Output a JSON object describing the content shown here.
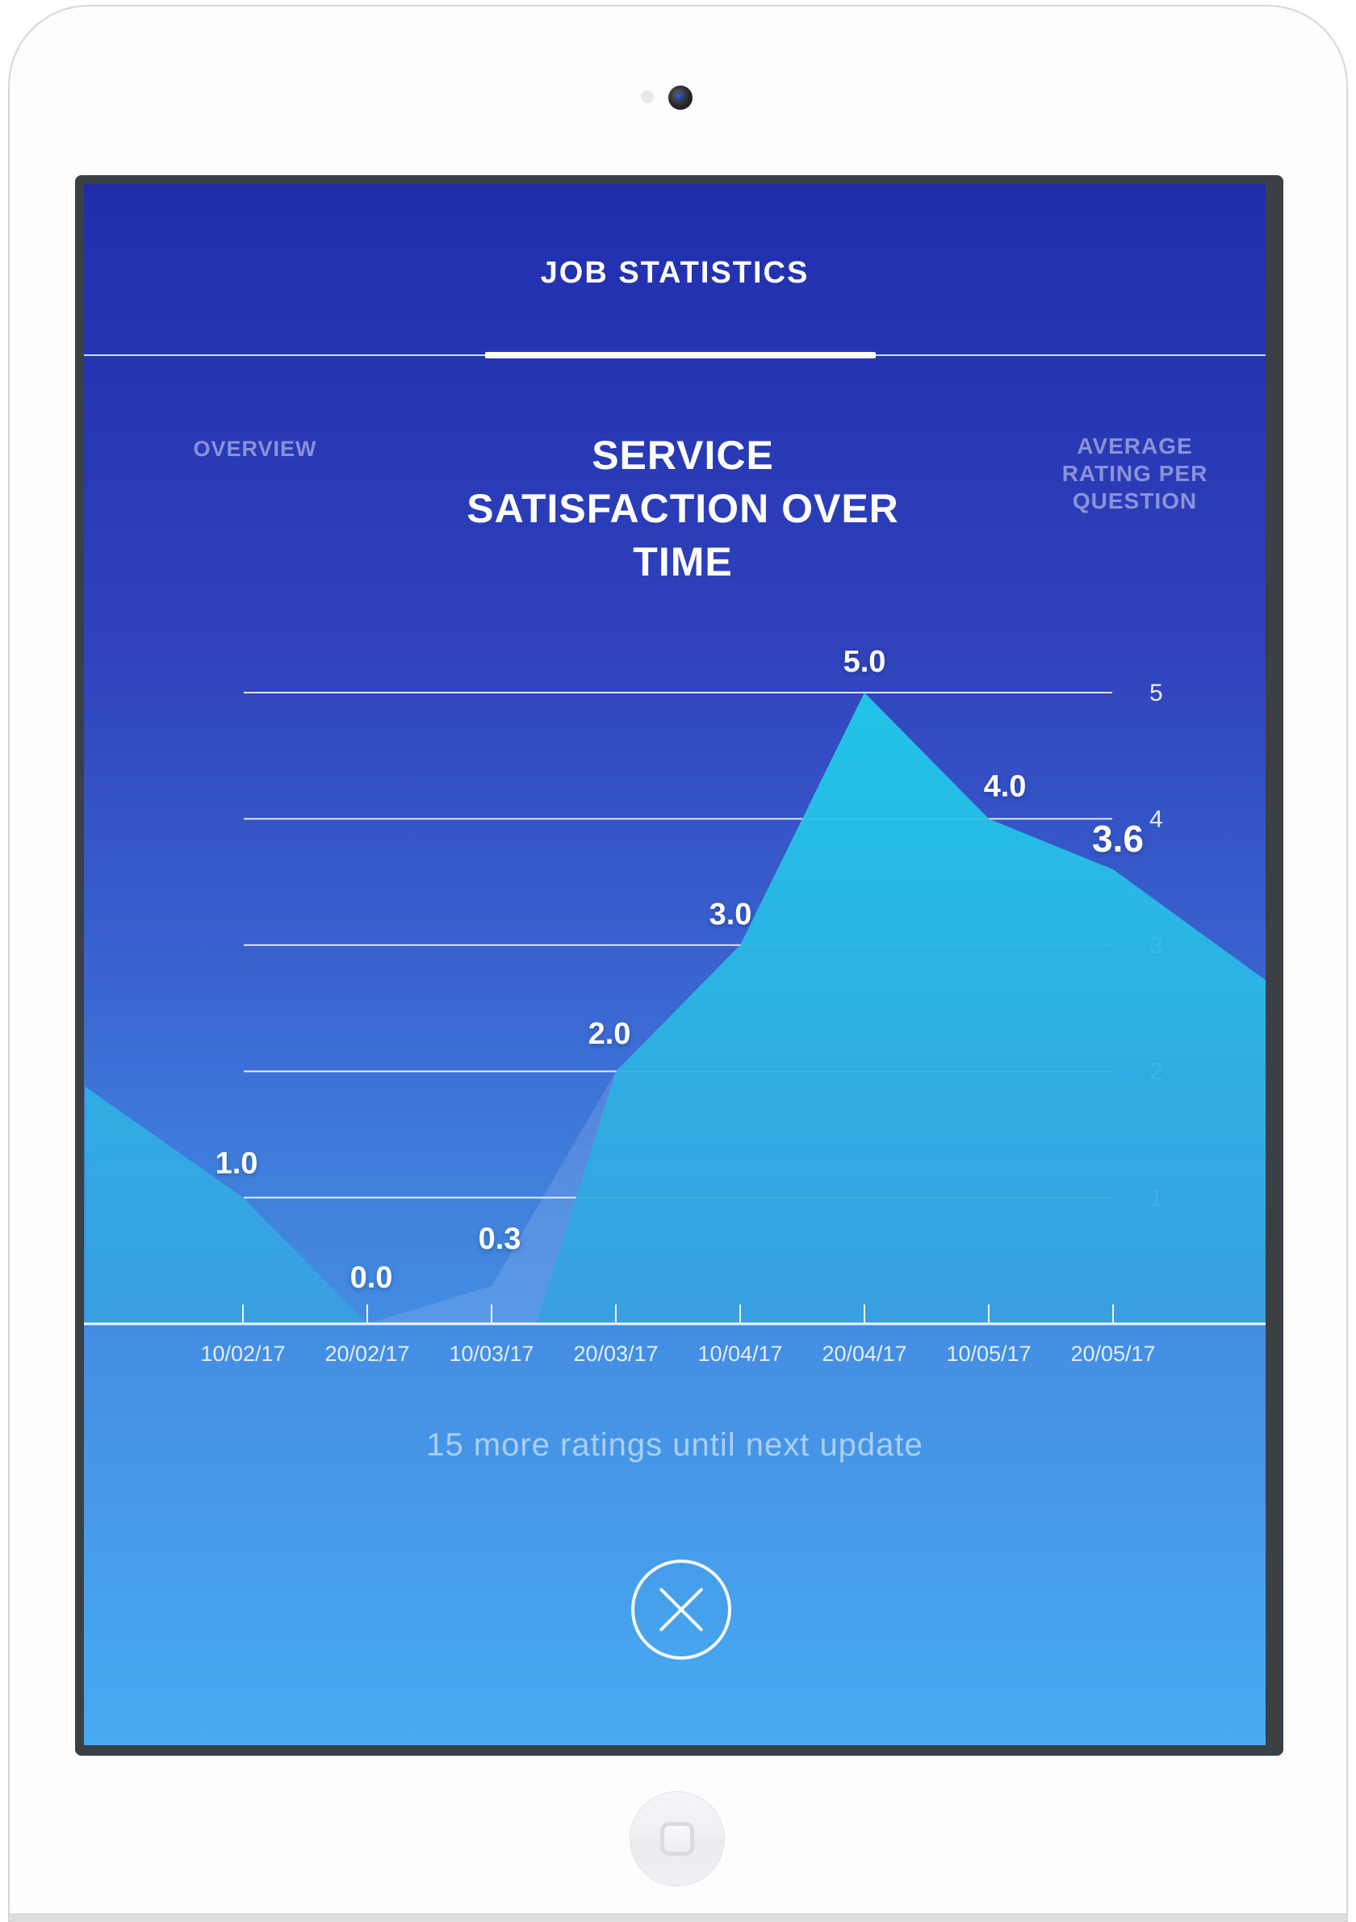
{
  "header": {
    "title": "JOB STATISTICS"
  },
  "tabs": [
    {
      "label": "OVERVIEW",
      "active": false
    },
    {
      "label": "SERVICE SATISFACTION OVER TIME",
      "active": true
    },
    {
      "label": "AVERAGE RATING PER QUESTION",
      "active": false
    }
  ],
  "chart_data": {
    "type": "area",
    "title": "SERVICE SATISFACTION OVER TIME",
    "categories": [
      "10/02/17",
      "20/02/17",
      "10/03/17",
      "20/03/17",
      "10/04/17",
      "20/04/17",
      "10/05/17",
      "20/05/17"
    ],
    "values": [
      1.0,
      0.0,
      0.3,
      2.0,
      3.0,
      5.0,
      4.0,
      3.6
    ],
    "point_labels": [
      "1.0",
      "0.0",
      "0.3",
      "2.0",
      "3.0",
      "5.0",
      "4.0",
      "3.6"
    ],
    "yticks": [
      1,
      2,
      3,
      4,
      5
    ],
    "ytick_labels": [
      "1",
      "2",
      "3",
      "4",
      "5"
    ],
    "ylim": [
      0,
      5
    ],
    "grid": "horizontal",
    "legend": "none",
    "series": [
      {
        "name": "satisfaction-dim-layer",
        "x": [
          -1.27,
          0,
          1,
          2,
          3,
          4,
          5,
          6,
          7,
          8.23
        ],
        "values": [
          1.88,
          1.0,
          0.0,
          0.3,
          2.0,
          3.0,
          5.0,
          4.0,
          3.6,
          2.72
        ],
        "fill": "dim"
      },
      {
        "name": "satisfaction-highlight-layer",
        "x": [
          -1.27,
          0,
          1,
          2.36,
          3,
          4,
          5,
          6,
          7,
          8.23
        ],
        "values": [
          1.88,
          1.0,
          0.0,
          0.0,
          2.0,
          3.0,
          5.0,
          4.0,
          3.6,
          2.72
        ],
        "fill": "cyan-gradient"
      }
    ],
    "colors": {
      "area_top": "#1fc9e9",
      "area_bottom": "#35a0e0",
      "dim_fill": "#ffffff",
      "dim_opacity": 0.12,
      "grid": "#ffffff"
    }
  },
  "footer": {
    "hint": "15 more ratings until next update"
  },
  "icons": {
    "close": "close-icon",
    "camera": "camera-icon",
    "home": "home-button-icon"
  }
}
